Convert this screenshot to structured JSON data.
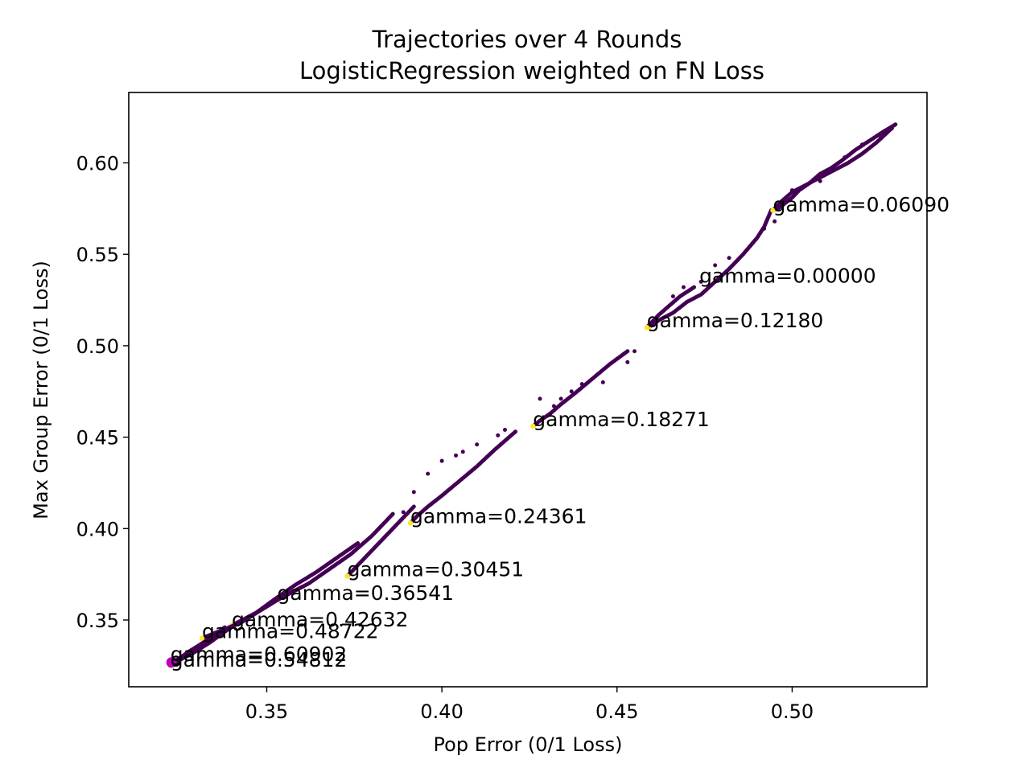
{
  "chart_data": {
    "type": "scatter",
    "title_line1": "Trajectories over 4 Rounds",
    "title_line2": "LogisticRegression weighted on FN Loss",
    "xlabel": "Pop Error (0/1 Loss)",
    "ylabel": "Max Group Error (0/1 Loss)",
    "xlim": [
      0.3106,
      0.5385
    ],
    "ylim": [
      0.3135,
      0.6385
    ],
    "xticks": [
      0.35,
      0.4,
      0.45,
      0.5
    ],
    "xtick_labels": [
      "0.35",
      "0.40",
      "0.45",
      "0.50"
    ],
    "yticks": [
      0.35,
      0.4,
      0.45,
      0.5,
      0.55,
      0.6
    ],
    "ytick_labels": [
      "0.35",
      "0.40",
      "0.45",
      "0.50",
      "0.55",
      "0.60"
    ],
    "grid": false,
    "colors": {
      "trajectory": "#440154",
      "endpoint": "#fde725",
      "start": "#c000c0",
      "frame": "#000000"
    },
    "trajectories": [
      {
        "name": "gamma=0.00000",
        "x": [
          0.5295,
          0.526,
          0.522,
          0.518,
          0.514,
          0.511,
          0.508,
          0.505,
          0.502,
          0.5,
          0.498,
          0.496,
          0.494,
          0.492,
          0.49,
          0.486,
          0.482,
          0.478,
          0.474,
          0.47,
          0.466,
          0.462,
          0.459
        ],
        "y": [
          0.621,
          0.617,
          0.612,
          0.607,
          0.601,
          0.597,
          0.594,
          0.589,
          0.585,
          0.581,
          0.578,
          0.575,
          0.574,
          0.565,
          0.559,
          0.55,
          0.542,
          0.535,
          0.528,
          0.524,
          0.518,
          0.514,
          0.51
        ]
      },
      {
        "name": "gamma=0.06090",
        "x": [
          0.5285,
          0.524,
          0.52,
          0.516,
          0.512,
          0.508,
          0.504,
          0.5,
          0.497,
          0.4945
        ],
        "y": [
          0.619,
          0.611,
          0.605,
          0.6,
          0.596,
          0.592,
          0.588,
          0.584,
          0.579,
          0.574
        ]
      },
      {
        "name": "gamma=0.12180",
        "x": [
          0.472,
          0.468,
          0.465,
          0.462,
          0.46,
          0.4585
        ],
        "y": [
          0.532,
          0.527,
          0.522,
          0.517,
          0.513,
          0.51
        ]
      },
      {
        "name": "gamma=0.18271",
        "x": [
          0.453,
          0.448,
          0.443,
          0.438,
          0.434,
          0.431,
          0.428,
          0.426
        ],
        "y": [
          0.497,
          0.49,
          0.482,
          0.474,
          0.468,
          0.463,
          0.459,
          0.456
        ]
      },
      {
        "name": "gamma=0.24361",
        "x": [
          0.421,
          0.415,
          0.41,
          0.405,
          0.4,
          0.396,
          0.393,
          0.391
        ],
        "y": [
          0.453,
          0.443,
          0.434,
          0.426,
          0.418,
          0.412,
          0.407,
          0.403
        ]
      },
      {
        "name": "gamma=0.30451",
        "x": [
          0.392,
          0.388,
          0.384,
          0.38,
          0.377,
          0.375,
          0.373
        ],
        "y": [
          0.412,
          0.404,
          0.396,
          0.388,
          0.382,
          0.378,
          0.374
        ]
      },
      {
        "name": "gamma=0.36541",
        "x": [
          0.386,
          0.38,
          0.374,
          0.368,
          0.362,
          0.357,
          0.353
        ],
        "y": [
          0.408,
          0.396,
          0.386,
          0.378,
          0.37,
          0.365,
          0.361
        ]
      },
      {
        "name": "gamma=0.42632",
        "x": [
          0.376,
          0.37,
          0.364,
          0.358,
          0.352,
          0.347,
          0.343,
          0.34
        ],
        "y": [
          0.392,
          0.384,
          0.376,
          0.369,
          0.361,
          0.354,
          0.35,
          0.347
        ]
      },
      {
        "name": "gamma=0.48722",
        "x": [
          0.36,
          0.354,
          0.348,
          0.343,
          0.338,
          0.334,
          0.3315
        ],
        "y": [
          0.368,
          0.362,
          0.355,
          0.349,
          0.345,
          0.342,
          0.34
        ]
      },
      {
        "name": "gamma=0.54812",
        "x": [
          0.345,
          0.339,
          0.334,
          0.329,
          0.325,
          0.3225
        ],
        "y": [
          0.352,
          0.345,
          0.338,
          0.332,
          0.328,
          0.325
        ]
      },
      {
        "name": "gamma=0.60902",
        "x": [
          0.338,
          0.333,
          0.328,
          0.325,
          0.3225
        ],
        "y": [
          0.346,
          0.339,
          0.333,
          0.329,
          0.327
        ]
      }
    ],
    "scattered_points": {
      "x": [
        0.525,
        0.52,
        0.515,
        0.508,
        0.5,
        0.495,
        0.492,
        0.482,
        0.478,
        0.474,
        0.469,
        0.466,
        0.455,
        0.453,
        0.446,
        0.44,
        0.437,
        0.434,
        0.432,
        0.428,
        0.418,
        0.416,
        0.41,
        0.406,
        0.404,
        0.4,
        0.396,
        0.392,
        0.389
      ],
      "y": [
        0.615,
        0.61,
        0.603,
        0.59,
        0.585,
        0.568,
        0.564,
        0.548,
        0.544,
        0.535,
        0.532,
        0.527,
        0.497,
        0.491,
        0.48,
        0.479,
        0.475,
        0.471,
        0.467,
        0.471,
        0.454,
        0.451,
        0.446,
        0.442,
        0.44,
        0.437,
        0.43,
        0.42,
        0.409
      ]
    },
    "labels": [
      {
        "text": "gamma=0.06090",
        "x": 0.4945,
        "y": 0.5735
      },
      {
        "text": "gamma=0.00000",
        "x": 0.4735,
        "y": 0.5345
      },
      {
        "text": "gamma=0.12180",
        "x": 0.4585,
        "y": 0.51
      },
      {
        "text": "gamma=0.18271",
        "x": 0.426,
        "y": 0.456
      },
      {
        "text": "gamma=0.24361",
        "x": 0.391,
        "y": 0.403
      },
      {
        "text": "gamma=0.30451",
        "x": 0.373,
        "y": 0.374
      },
      {
        "text": "gamma=0.36541",
        "x": 0.353,
        "y": 0.361
      },
      {
        "text": "gamma=0.42632",
        "x": 0.34,
        "y": 0.3465
      },
      {
        "text": "gamma=0.48722",
        "x": 0.3315,
        "y": 0.34
      },
      {
        "text": "gamma=0.60902",
        "x": 0.3225,
        "y": 0.3275
      },
      {
        "text": "gamma=0.54812",
        "x": 0.3225,
        "y": 0.3245
      }
    ],
    "start_point": {
      "x": 0.3228,
      "y": 0.3268
    }
  }
}
